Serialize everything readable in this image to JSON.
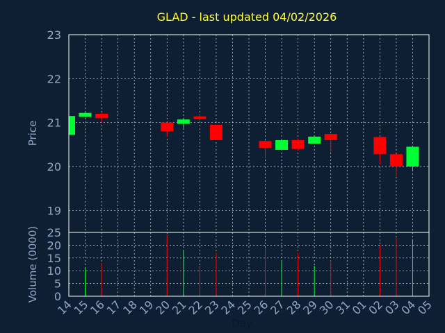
{
  "chart_data": {
    "type": "candlestick",
    "title": "GLAD - last updated 04/02/2026",
    "x_tick_labels": [
      "14",
      "15",
      "16",
      "17",
      "18",
      "19",
      "20",
      "21",
      "22",
      "23",
      "24",
      "25",
      "26",
      "27",
      "28",
      "29",
      "30",
      "31",
      "01",
      "02",
      "03",
      "04",
      "05"
    ],
    "xlabel": "Day",
    "price_panel": {
      "ylabel": "Price",
      "ylim": [
        18.5,
        23
      ],
      "y_ticks": [
        19,
        20,
        21,
        22,
        23
      ],
      "candles": [
        {
          "day": "14",
          "open": 20.72,
          "close": 21.15,
          "high": 21.15,
          "low": 20.72
        },
        {
          "day": "15",
          "open": 21.13,
          "close": 21.22,
          "high": 21.25,
          "low": 21.12
        },
        {
          "day": "16",
          "open": 21.2,
          "close": 21.1,
          "high": 21.22,
          "low": 21.0
        },
        {
          "day": "20",
          "open": 21.0,
          "close": 20.8,
          "high": 21.0,
          "low": 20.68
        },
        {
          "day": "21",
          "open": 20.97,
          "close": 21.07,
          "high": 21.08,
          "low": 20.88
        },
        {
          "day": "22",
          "open": 21.14,
          "close": 21.08,
          "high": 21.2,
          "low": 21.05
        },
        {
          "day": "23",
          "open": 20.95,
          "close": 20.6,
          "high": 20.95,
          "low": 20.6
        },
        {
          "day": "26",
          "open": 20.58,
          "close": 20.42,
          "high": 20.6,
          "low": 20.18
        },
        {
          "day": "27",
          "open": 20.38,
          "close": 20.6,
          "high": 20.6,
          "low": 20.37
        },
        {
          "day": "28",
          "open": 20.6,
          "close": 20.4,
          "high": 20.63,
          "low": 20.37
        },
        {
          "day": "29",
          "open": 20.52,
          "close": 20.68,
          "high": 20.7,
          "low": 20.52
        },
        {
          "day": "30",
          "open": 20.74,
          "close": 20.6,
          "high": 20.75,
          "low": 20.32
        },
        {
          "day": "02",
          "open": 20.67,
          "close": 20.28,
          "high": 20.67,
          "low": 20.05
        },
        {
          "day": "03",
          "open": 20.28,
          "close": 20.0,
          "high": 20.28,
          "low": 19.78
        },
        {
          "day": "04",
          "open": 20.0,
          "close": 20.45,
          "high": 20.45,
          "low": 19.9
        }
      ]
    },
    "volume_panel": {
      "ylabel": "Volume (0000)",
      "ylim": [
        0,
        25
      ],
      "y_ticks": [
        0,
        5,
        10,
        15,
        20,
        25
      ],
      "bars": [
        {
          "day": "15",
          "value": 11,
          "color": "green"
        },
        {
          "day": "16",
          "value": 13,
          "color": "red"
        },
        {
          "day": "20",
          "value": 24,
          "color": "red"
        },
        {
          "day": "21",
          "value": 18,
          "color": "green"
        },
        {
          "day": "22",
          "value": 12,
          "color": "red"
        },
        {
          "day": "23",
          "value": 17,
          "color": "red"
        },
        {
          "day": "26",
          "value": 19,
          "color": "red"
        },
        {
          "day": "27",
          "value": 14,
          "color": "green"
        },
        {
          "day": "28",
          "value": 17,
          "color": "red"
        },
        {
          "day": "29",
          "value": 12,
          "color": "green"
        },
        {
          "day": "30",
          "value": 14,
          "color": "red"
        },
        {
          "day": "02",
          "value": 20,
          "color": "red"
        },
        {
          "day": "03",
          "value": 23,
          "color": "red"
        },
        {
          "day": "04",
          "value": 22,
          "color": "green"
        }
      ]
    },
    "grid": true,
    "colors": {
      "background": "#0f1f33",
      "up": "#00ff33",
      "down": "#ff0000",
      "title": "#ffff33",
      "axis_text": "#8fa8c8",
      "grid": "#ffffff",
      "plot_border": "#ffffff"
    }
  }
}
